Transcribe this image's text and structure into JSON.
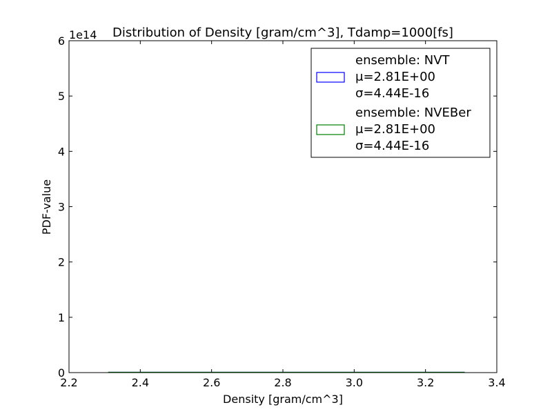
{
  "chart_data": {
    "type": "line",
    "title": "Distribution of Density [gram/cm^3], Tdamp=1000[fs]",
    "xlabel": "Density [gram/cm^3]",
    "ylabel": "PDF-value",
    "xlim": [
      2.2,
      3.4
    ],
    "ylim": [
      0,
      6
    ],
    "y_multiplier_label": "1e14",
    "x_ticks": [
      "2.2",
      "2.4",
      "2.6",
      "2.8",
      "3.0",
      "3.2",
      "3.4"
    ],
    "y_ticks": [
      "0",
      "1",
      "2",
      "3",
      "4",
      "5",
      "6"
    ],
    "legend_position": "top-right",
    "series": [
      {
        "name": "ensemble: NVT",
        "mu_label": "μ=2.81E+00",
        "sigma_label": "σ=4.44E-16",
        "color": "#0000ff",
        "x": [
          2.31,
          3.31
        ],
        "y": [
          0,
          0
        ]
      },
      {
        "name": "ensemble: NVEBer",
        "mu_label": "μ=2.81E+00",
        "sigma_label": "σ=4.44E-16",
        "color": "#008000",
        "x": [
          2.31,
          3.31
        ],
        "y": [
          0,
          0
        ]
      }
    ]
  }
}
